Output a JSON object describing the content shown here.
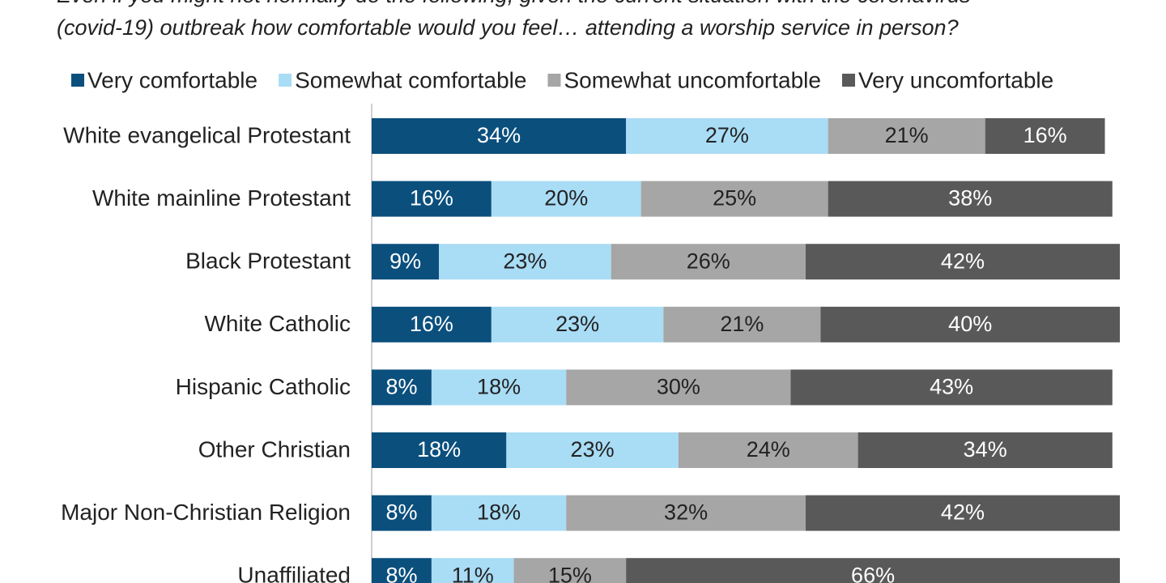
{
  "question": {
    "line1": "Even if you might not normally do the following, given the current situation with the coronavirus",
    "line2": "(covid-19) outbreak how comfortable would you feel… attending a worship service in person?"
  },
  "chart_data": {
    "type": "bar",
    "orientation": "horizontal",
    "stacked": true,
    "title": "",
    "xlabel": "",
    "ylabel": "",
    "xlim": [
      0,
      100
    ],
    "grid": false,
    "legend": "top",
    "categories": [
      "White evangelical Protestant",
      "White mainline Protestant",
      "Black Protestant",
      "White Catholic",
      "Hispanic Catholic",
      "Other Christian",
      "Major Non-Christian Religion",
      "Unaffiliated"
    ],
    "series": [
      {
        "name": "Very comfortable",
        "color": "#0b4f7d",
        "text_color": "#ffffff",
        "values": [
          34,
          16,
          9,
          16,
          8,
          18,
          8,
          8
        ]
      },
      {
        "name": "Somewhat comfortable",
        "color": "#a9dcf5",
        "text_color": "#222222",
        "values": [
          27,
          20,
          23,
          23,
          18,
          23,
          18,
          11
        ]
      },
      {
        "name": "Somewhat uncomfortable",
        "color": "#a6a6a6",
        "text_color": "#222222",
        "values": [
          21,
          25,
          26,
          21,
          30,
          24,
          32,
          15
        ]
      },
      {
        "name": "Very uncomfortable",
        "color": "#595959",
        "text_color": "#ffffff",
        "values": [
          16,
          38,
          42,
          40,
          43,
          34,
          42,
          66
        ]
      }
    ],
    "value_suffix": "%"
  }
}
